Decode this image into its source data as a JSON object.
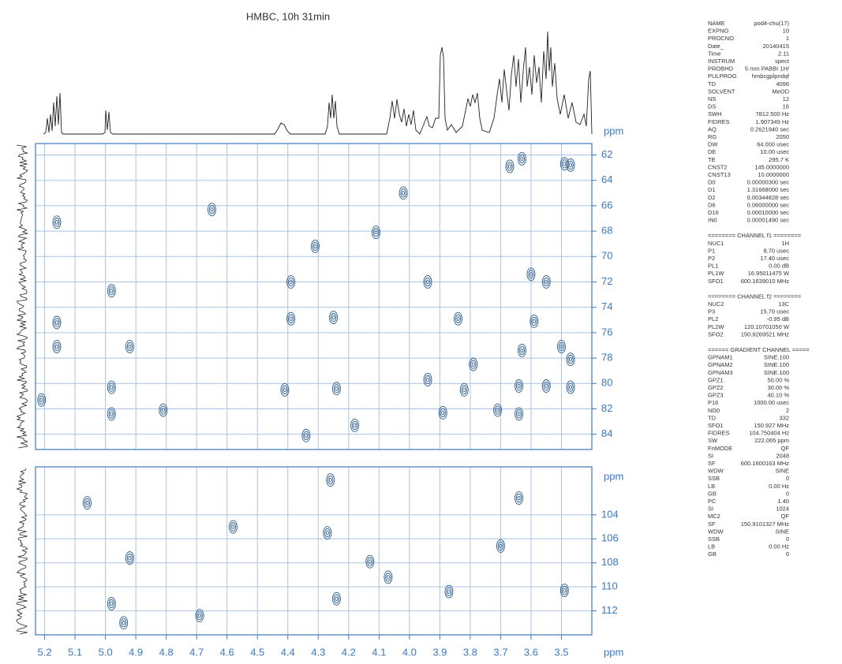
{
  "chart_data": [
    {
      "type": "scatter",
      "title": "HMBC, 10h 31min",
      "y_label": "ppm",
      "color": "#2a5a8c",
      "grid": true,
      "xlim": [
        5.23,
        3.4
      ],
      "ylim": [
        61.1,
        85.2
      ],
      "yticks": [
        62,
        64,
        66,
        68,
        70,
        72,
        74,
        76,
        78,
        80,
        82,
        84
      ],
      "x": [
        3.63,
        3.67,
        3.49,
        3.47,
        4.02,
        5.16,
        4.65,
        4.11,
        4.31,
        4.98,
        3.6,
        3.55,
        4.39,
        3.94,
        4.25,
        3.84,
        3.59,
        5.16,
        4.39,
        5.16,
        4.92,
        3.63,
        3.79,
        3.5,
        3.47,
        4.98,
        4.41,
        4.24,
        3.64,
        3.55,
        3.47,
        3.82,
        3.94,
        5.21,
        4.98,
        4.81,
        3.89,
        3.64,
        3.71,
        4.18,
        4.34
      ],
      "values": [
        62.3,
        62.9,
        62.7,
        62.8,
        65.0,
        67.3,
        66.3,
        68.1,
        69.2,
        72.7,
        71.4,
        72.0,
        72.0,
        72.0,
        74.8,
        74.9,
        75.1,
        75.2,
        74.9,
        77.1,
        77.1,
        77.4,
        78.5,
        77.1,
        78.1,
        80.3,
        80.5,
        80.4,
        80.2,
        80.2,
        80.3,
        80.5,
        79.7,
        81.3,
        82.4,
        82.1,
        82.3,
        82.4,
        82.1,
        83.3,
        84.1
      ]
    },
    {
      "type": "scatter",
      "y_label": "ppm",
      "x_label": "ppm",
      "color": "#2a5a8c",
      "grid": true,
      "xlim": [
        5.23,
        3.4
      ],
      "ylim": [
        100,
        114
      ],
      "xticks": [
        5.2,
        5.1,
        {
          "value": 5,
          "label": "5.0"
        },
        4.9,
        4.8,
        4.7,
        4.6,
        4.5,
        4.4,
        4.3,
        4.2,
        4.1,
        {
          "value": 4,
          "label": "4.0"
        },
        3.9,
        3.8,
        3.7,
        3.6,
        3.5
      ],
      "yticks": [
        104,
        106,
        108,
        110,
        112
      ],
      "x": [
        4.26,
        5.06,
        3.64,
        4.27,
        4.58,
        3.7,
        4.92,
        4.13,
        4.07,
        4.98,
        4.24,
        3.87,
        3.49,
        4.69,
        4.94
      ],
      "values": [
        101.1,
        103.0,
        102.6,
        105.5,
        105.0,
        106.6,
        107.6,
        107.9,
        109.2,
        111.4,
        111.0,
        110.4,
        110.3,
        112.4,
        113.0
      ]
    }
  ],
  "parameters": [
    {
      "rows": [
        [
          "NAME",
          "pod4-chu(17)"
        ],
        [
          "EXPNO",
          "10"
        ],
        [
          "PROCNO",
          "1"
        ],
        [
          "Date_",
          "20140415"
        ],
        [
          "Time",
          "2.11"
        ],
        [
          "INSTRUM",
          "spect"
        ],
        [
          "PROBHD",
          "5 mm PABBI 1H/"
        ],
        [
          "PULPROG",
          "hmbcgplpndqf"
        ],
        [
          "TD",
          "4096"
        ],
        [
          "SOLVENT",
          "MeOD"
        ],
        [
          "NS",
          "12"
        ],
        [
          "DS",
          "16"
        ],
        [
          "SWH",
          "7812.500 Hz"
        ],
        [
          "FIDRES",
          "1.907349 Hz"
        ],
        [
          "AQ",
          "0.2621940 sec"
        ],
        [
          "RG",
          "2050"
        ],
        [
          "DW",
          "64.000 usec"
        ],
        [
          "DE",
          "10.00 usec"
        ],
        [
          "TE",
          "295.7 K"
        ],
        [
          "CNST2",
          "145.0000000"
        ],
        [
          "CNST13",
          "10.0000000"
        ],
        [
          "D0",
          "0.00000300 sec"
        ],
        [
          "D1",
          "1.31668000 sec"
        ],
        [
          "D2",
          "0.00344828 sec"
        ],
        [
          "D6",
          "0.06000000 sec"
        ],
        [
          "D16",
          "0.00010000 sec"
        ],
        [
          "IN0",
          "0.00001490 sec"
        ]
      ]
    },
    {
      "header": "======== CHANNEL f1 ========",
      "rows": [
        [
          "NUC1",
          "1H"
        ],
        [
          "P1",
          "8.70 usec"
        ],
        [
          "P2",
          "17.40 usec"
        ],
        [
          "PL1",
          "0.00 dB"
        ],
        [
          "PL1W",
          "16.95011475 W"
        ],
        [
          "SFO1",
          "600.1639010 MHz"
        ]
      ]
    },
    {
      "header": "======== CHANNEL f2 ========",
      "rows": [
        [
          "NUC2",
          "13C"
        ],
        [
          "P3",
          "15.70 usec"
        ],
        [
          "PL2",
          "-0.95 dB"
        ],
        [
          "PL2W",
          "120.10701050 W"
        ],
        [
          "SFO2",
          "150.9269521 MHz"
        ]
      ]
    },
    {
      "header": "====== GRADIENT CHANNEL =====",
      "rows": [
        [
          "GPNAM1",
          "SINE.100"
        ],
        [
          "GPNAM2",
          "SINE.100"
        ],
        [
          "GPNAM3",
          "SINE.100"
        ],
        [
          "GPZ1",
          "50.00 %"
        ],
        [
          "GPZ2",
          "30.00 %"
        ],
        [
          "GPZ3",
          "40.10 %"
        ],
        [
          "P16",
          "1000.00 usec"
        ],
        [
          "ND0",
          "2"
        ],
        [
          "TD",
          "332"
        ],
        [
          "SFO1",
          "150.927 MHz"
        ],
        [
          "FIDRES",
          "104.750404 Hz"
        ],
        [
          "SW",
          "222.065 ppm"
        ],
        [
          "FnMODE",
          "QF"
        ],
        [
          "SI",
          "2048"
        ],
        [
          "SF",
          "600.1600163 MHz"
        ],
        [
          "WDW",
          "SINE"
        ],
        [
          "SSB",
          "0"
        ],
        [
          "LB",
          "0.00 Hz"
        ],
        [
          "GB",
          "0"
        ],
        [
          "PC",
          "1.40"
        ],
        [
          "SI",
          "1024"
        ],
        [
          "MC2",
          "QF"
        ],
        [
          "SF",
          "150.9101327 MHz"
        ],
        [
          "WDW",
          "SINE"
        ],
        [
          "SSB",
          "0"
        ],
        [
          "LB",
          "0.00 Hz"
        ],
        [
          "GB",
          "0"
        ]
      ]
    }
  ]
}
